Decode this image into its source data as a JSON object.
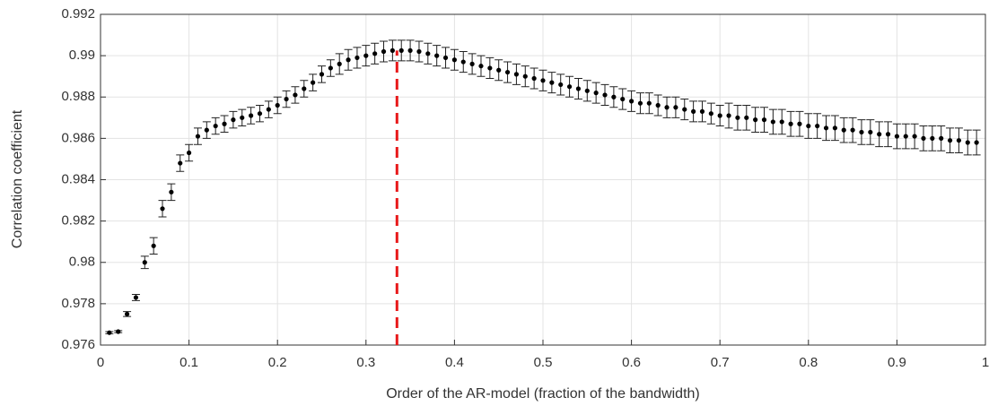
{
  "chart_data": {
    "type": "errorbar",
    "xlabel": "Order of the AR-model (fraction of the bandwidth)",
    "ylabel": "Correlation coefficient",
    "x": [
      0.01,
      0.02,
      0.03,
      0.04,
      0.05,
      0.06,
      0.07,
      0.08,
      0.09,
      0.1,
      0.11,
      0.12,
      0.13,
      0.14,
      0.15,
      0.16,
      0.17,
      0.18,
      0.19,
      0.2,
      0.21,
      0.22,
      0.23,
      0.24,
      0.25,
      0.26,
      0.27,
      0.28,
      0.29,
      0.3,
      0.31,
      0.32,
      0.33,
      0.34,
      0.35,
      0.36,
      0.37,
      0.38,
      0.39,
      0.4,
      0.41,
      0.42,
      0.43,
      0.44,
      0.45,
      0.46,
      0.47,
      0.48,
      0.49,
      0.5,
      0.51,
      0.52,
      0.53,
      0.54,
      0.55,
      0.56,
      0.57,
      0.58,
      0.59,
      0.6,
      0.61,
      0.62,
      0.63,
      0.64,
      0.65,
      0.66,
      0.67,
      0.68,
      0.69,
      0.7,
      0.71,
      0.72,
      0.73,
      0.74,
      0.75,
      0.76,
      0.77,
      0.78,
      0.79,
      0.8,
      0.81,
      0.82,
      0.83,
      0.84,
      0.85,
      0.86,
      0.87,
      0.88,
      0.89,
      0.9,
      0.91,
      0.92,
      0.93,
      0.94,
      0.95,
      0.96,
      0.97,
      0.98,
      0.99
    ],
    "values": [
      0.9766,
      0.97665,
      0.9775,
      0.9783,
      0.98,
      0.9808,
      0.9826,
      0.9834,
      0.9848,
      0.9853,
      0.9861,
      0.9864,
      0.9866,
      0.9867,
      0.9869,
      0.987,
      0.9871,
      0.9872,
      0.9874,
      0.9876,
      0.9879,
      0.9881,
      0.9884,
      0.9887,
      0.9891,
      0.9894,
      0.9896,
      0.9898,
      0.9899,
      0.99,
      0.9901,
      0.9902,
      0.99025,
      0.99025,
      0.99025,
      0.9902,
      0.9901,
      0.99,
      0.9899,
      0.9898,
      0.9897,
      0.9896,
      0.9895,
      0.9894,
      0.9893,
      0.9892,
      0.9891,
      0.989,
      0.9889,
      0.9888,
      0.9887,
      0.9886,
      0.9885,
      0.9884,
      0.9883,
      0.9882,
      0.9881,
      0.988,
      0.9879,
      0.9878,
      0.9877,
      0.9877,
      0.9876,
      0.9875,
      0.9875,
      0.9874,
      0.9873,
      0.9873,
      0.9872,
      0.9871,
      0.9871,
      0.987,
      0.987,
      0.9869,
      0.9869,
      0.9868,
      0.9868,
      0.9867,
      0.9867,
      0.9866,
      0.9866,
      0.9865,
      0.9865,
      0.9864,
      0.9864,
      0.9863,
      0.9863,
      0.9862,
      0.9862,
      0.9861,
      0.9861,
      0.9861,
      0.986,
      0.986,
      0.986,
      0.9859,
      0.9859,
      0.9858,
      0.9858
    ],
    "errors": [
      5e-05,
      5e-05,
      0.00012,
      0.00015,
      0.0003,
      0.0004,
      0.0004,
      0.0004,
      0.0004,
      0.0004,
      0.0004,
      0.0004,
      0.0004,
      0.0004,
      0.0004,
      0.0004,
      0.0004,
      0.0004,
      0.0004,
      0.0004,
      0.0004,
      0.0004,
      0.0004,
      0.0004,
      0.0004,
      0.0004,
      0.0005,
      0.0005,
      0.0005,
      0.0005,
      0.0005,
      0.0005,
      0.0005,
      0.0005,
      0.0005,
      0.0005,
      0.0005,
      0.0005,
      0.0005,
      0.0005,
      0.0005,
      0.0005,
      0.0005,
      0.0005,
      0.0005,
      0.0005,
      0.0005,
      0.0005,
      0.0005,
      0.0005,
      0.0005,
      0.0005,
      0.0005,
      0.0005,
      0.0005,
      0.0005,
      0.0005,
      0.0005,
      0.0005,
      0.0005,
      0.0005,
      0.0005,
      0.0005,
      0.0005,
      0.0005,
      0.0005,
      0.0005,
      0.0005,
      0.0005,
      0.0005,
      0.0006,
      0.0006,
      0.0006,
      0.0006,
      0.0006,
      0.0006,
      0.0006,
      0.0006,
      0.0006,
      0.0006,
      0.0006,
      0.0006,
      0.0006,
      0.0006,
      0.0006,
      0.0006,
      0.0006,
      0.0006,
      0.0006,
      0.0006,
      0.0006,
      0.0006,
      0.0006,
      0.0006,
      0.0006,
      0.0006,
      0.0006,
      0.0006,
      0.0006
    ],
    "color": "#000000",
    "reference_x": 0.335,
    "reference_color": "#e8191a",
    "xlim": [
      0,
      1
    ],
    "ylim": [
      0.976,
      0.992
    ],
    "xticks": [
      0,
      0.1,
      0.2,
      0.3,
      0.4,
      0.5,
      0.6,
      0.7,
      0.8,
      0.9,
      1
    ],
    "yticks": [
      0.976,
      0.978,
      0.98,
      0.982,
      0.984,
      0.986,
      0.988,
      0.99,
      0.992
    ],
    "grid": true
  }
}
